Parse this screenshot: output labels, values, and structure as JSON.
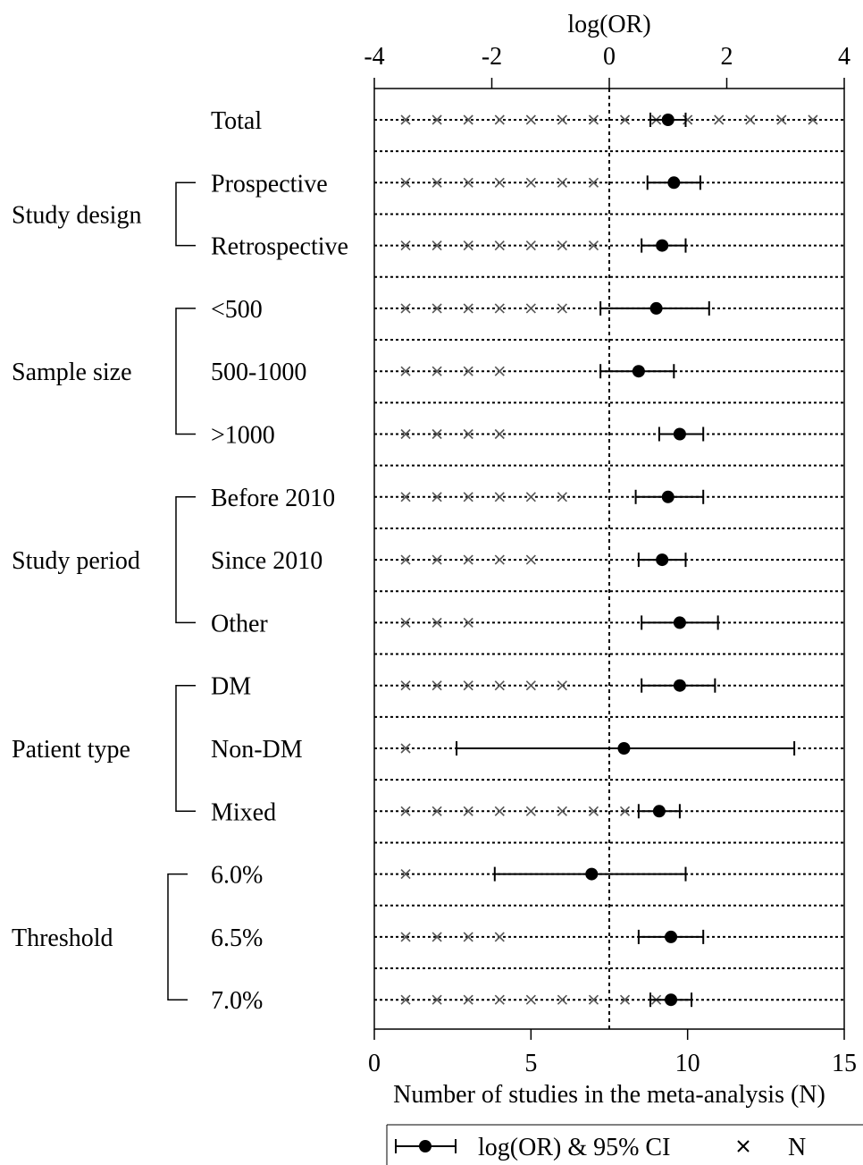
{
  "chart_data": {
    "type": "forest",
    "top_axis": {
      "label": "log(OR)",
      "range": [
        -4,
        4
      ],
      "ticks": [
        "-4",
        "-2",
        "0",
        "2",
        "4"
      ]
    },
    "bottom_axis": {
      "label": "Number of studies in the meta-analysis (N)",
      "range": [
        0,
        15
      ],
      "ticks": [
        "0",
        "5",
        "10",
        "15"
      ]
    },
    "groups": [
      {
        "label": "Study design",
        "start": 1,
        "end": 2
      },
      {
        "label": "Sample size",
        "start": 3,
        "end": 5
      },
      {
        "label": "Study period",
        "start": 6,
        "end": 8
      },
      {
        "label": "Patient type",
        "start": 9,
        "end": 11
      },
      {
        "label": "Threshold",
        "start": 12,
        "end": 14
      }
    ],
    "rows": [
      {
        "label": "Total",
        "log_or": 1.0,
        "ci": [
          0.7,
          1.3
        ],
        "n": 14
      },
      {
        "label": "Prospective",
        "log_or": 1.1,
        "ci": [
          0.65,
          1.55
        ],
        "n": 7
      },
      {
        "label": "Retrospective",
        "log_or": 0.9,
        "ci": [
          0.55,
          1.3
        ],
        "n": 7
      },
      {
        "label": "<500",
        "log_or": 0.8,
        "ci": [
          -0.15,
          1.7
        ],
        "n": 6
      },
      {
        "label": "500-1000",
        "log_or": 0.5,
        "ci": [
          -0.15,
          1.1
        ],
        "n": 4
      },
      {
        "label": ">1000",
        "log_or": 1.2,
        "ci": [
          0.85,
          1.6
        ],
        "n": 4
      },
      {
        "label": "Before 2010",
        "log_or": 1.0,
        "ci": [
          0.45,
          1.6
        ],
        "n": 6
      },
      {
        "label": "Since 2010",
        "log_or": 0.9,
        "ci": [
          0.5,
          1.3
        ],
        "n": 5
      },
      {
        "label": "Other",
        "log_or": 1.2,
        "ci": [
          0.55,
          1.85
        ],
        "n": 3
      },
      {
        "label": "DM",
        "log_or": 1.2,
        "ci": [
          0.55,
          1.8
        ],
        "n": 6
      },
      {
        "label": "Non-DM",
        "log_or": 0.25,
        "ci": [
          -2.6,
          3.15
        ],
        "n": 1
      },
      {
        "label": "Mixed",
        "log_or": 0.85,
        "ci": [
          0.5,
          1.2
        ],
        "n": 8
      },
      {
        "label": "6.0%",
        "log_or": -0.3,
        "ci": [
          -1.95,
          1.3
        ],
        "n": 1
      },
      {
        "label": "6.5%",
        "log_or": 1.05,
        "ci": [
          0.5,
          1.6
        ],
        "n": 4
      },
      {
        "label": "7.0%",
        "log_or": 1.05,
        "ci": [
          0.7,
          1.4
        ],
        "n": 9
      }
    ],
    "legend": [
      {
        "symbol": "errorbar-dot",
        "label": "log(OR) & 95% CI"
      },
      {
        "symbol": "cross",
        "label": "N"
      }
    ],
    "legend_position": "bottom"
  }
}
